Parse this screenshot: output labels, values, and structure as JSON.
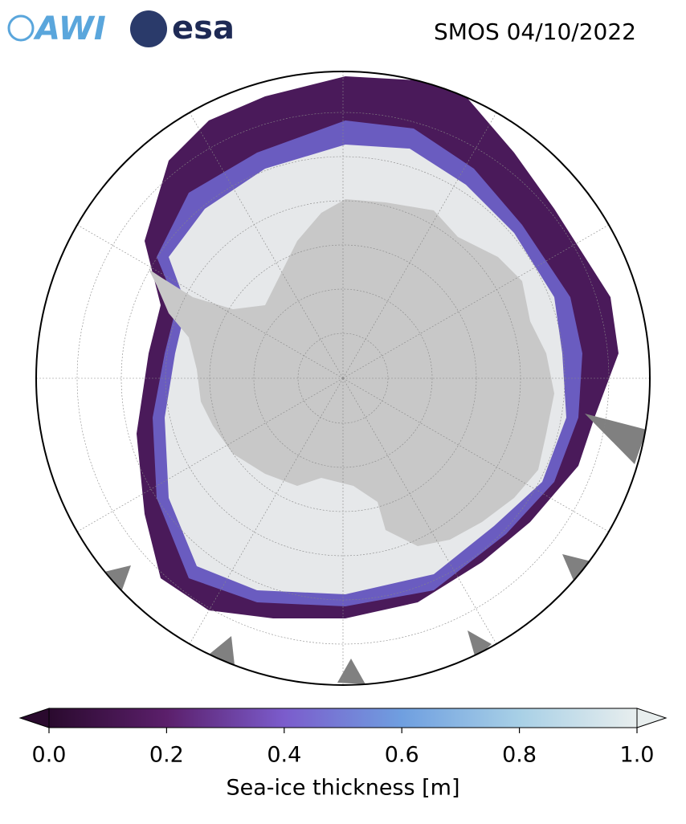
{
  "header": {
    "logos": [
      "AWI",
      "esa"
    ],
    "title": "SMOS 04/10/2022"
  },
  "colorbar": {
    "label": "Sea-ice thickness [m]",
    "lim": [
      0,
      1
    ],
    "ticks": [
      {
        "value": 0,
        "label": "0.0"
      },
      0.2,
      0.4,
      0.6,
      0.8,
      {
        "value": 1,
        "label": "1.0"
      }
    ],
    "colors": [
      "#2a0a2e",
      "#5b1f6b",
      "#7b5ccc",
      "#6f9fe0",
      "#a8d0e6",
      "#e8eeee"
    ]
  }
}
